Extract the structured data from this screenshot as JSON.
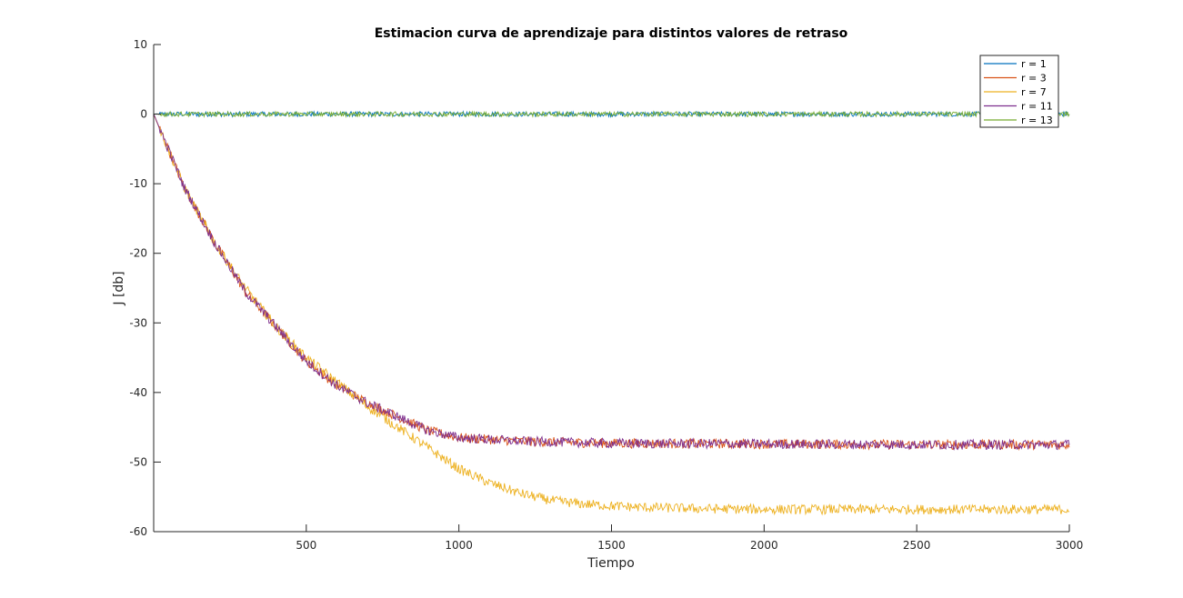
{
  "chart_data": {
    "type": "line",
    "title": "Estimacion curva de aprendizaje para distintos valores de retraso",
    "xlabel": "Tiempo",
    "ylabel": "J [db]",
    "xlim": [
      0,
      3000
    ],
    "ylim": [
      -60,
      10
    ],
    "xticks": [
      500,
      1000,
      1500,
      2000,
      2500,
      3000
    ],
    "yticks": [
      10,
      0,
      -10,
      -20,
      -30,
      -40,
      -50,
      -60
    ],
    "grid": false,
    "legend_position": "top-right",
    "series": [
      {
        "name": "r = 1",
        "color": "#0072BD",
        "x": [
          0,
          500,
          1000,
          1500,
          2000,
          2500,
          3000
        ],
        "values": [
          0,
          0,
          0,
          0,
          0,
          0,
          0
        ]
      },
      {
        "name": "r = 3",
        "color": "#D95319",
        "x": [
          0,
          100,
          200,
          300,
          400,
          500,
          600,
          700,
          800,
          900,
          1000,
          1200,
          1500,
          2000,
          2500,
          3000
        ],
        "values": [
          0,
          -10.5,
          -18.5,
          -25.5,
          -30.5,
          -35.5,
          -39,
          -41.5,
          -43.5,
          -45.5,
          -46.5,
          -47,
          -47.3,
          -47.4,
          -47.5,
          -47.5
        ]
      },
      {
        "name": "r = 7",
        "color": "#EDB120",
        "x": [
          0,
          100,
          200,
          300,
          400,
          500,
          600,
          700,
          800,
          900,
          1000,
          1100,
          1200,
          1300,
          1400,
          1500,
          1600,
          1800,
          2000,
          2500,
          3000
        ],
        "values": [
          0,
          -10.5,
          -18.5,
          -25,
          -30.5,
          -35,
          -38.5,
          -42,
          -45,
          -48,
          -51,
          -53,
          -54.5,
          -55.5,
          -56,
          -56.3,
          -56.5,
          -56.7,
          -56.8,
          -56.8,
          -56.8
        ]
      },
      {
        "name": "r = 11",
        "color": "#7E2F8E",
        "x": [
          0,
          100,
          200,
          300,
          400,
          500,
          600,
          700,
          800,
          900,
          1000,
          1200,
          1500,
          2000,
          2500,
          3000
        ],
        "values": [
          0,
          -10.5,
          -18.5,
          -25.5,
          -30.5,
          -35.5,
          -39,
          -41.5,
          -43.5,
          -45.5,
          -46.5,
          -47,
          -47.3,
          -47.4,
          -47.5,
          -47.5
        ]
      },
      {
        "name": "r = 13",
        "color": "#77AC30",
        "x": [
          0,
          500,
          1000,
          1500,
          2000,
          2500,
          3000
        ],
        "values": [
          0,
          0,
          0,
          0,
          0,
          0,
          0
        ]
      }
    ]
  }
}
